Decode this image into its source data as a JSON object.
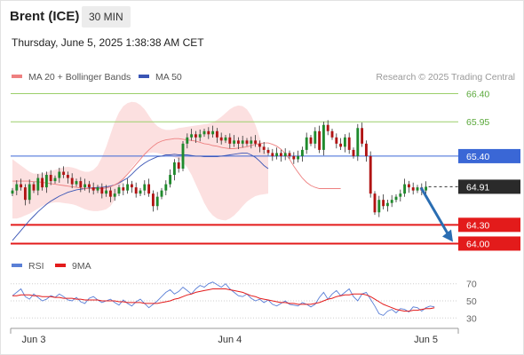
{
  "header": {
    "instrument": "Brent (ICE)",
    "interval": "30 MIN",
    "datetime": "Thursday, June 5, 2025 1:38:38 AM CET",
    "copyright": "Research © 2025 Trading Central"
  },
  "colors": {
    "bullish": "#1f8a2c",
    "bearish": "#b11414",
    "bollinger": "#f5a6a6",
    "ma20": "#ee8080",
    "ma50": "#3a55b5",
    "support": "#e31b1b",
    "resistance_minor": "#9bcf6a",
    "resistance_major": "#3a67d6",
    "rsi": "#5a7fd6",
    "rsi_ma": "#e31b1b",
    "current_price": "#2a2a2a",
    "arrow": "#2a6db2"
  },
  "chart_data": [
    {
      "type": "candlestick",
      "legend": [
        {
          "name": "MA 20 + Bollinger Bands",
          "color": "#ee8080"
        },
        {
          "name": "MA 50",
          "color": "#3a55b5"
        }
      ],
      "x_ticks": [
        {
          "label": "Jun 3",
          "index": 5
        },
        {
          "label": "Jun 4",
          "index": 51
        },
        {
          "label": "Jun 5",
          "index": 97
        }
      ],
      "ylim": [
        63.85,
        66.55
      ],
      "levels": [
        {
          "value": 66.4,
          "label": "66.40",
          "kind": "resistance_minor"
        },
        {
          "value": 65.95,
          "label": "65.95",
          "kind": "resistance_minor"
        },
        {
          "value": 65.4,
          "label": "65.40",
          "kind": "resistance_major"
        },
        {
          "value": 64.3,
          "label": "64.30",
          "kind": "support"
        },
        {
          "value": 64.0,
          "label": "64.00",
          "kind": "support"
        }
      ],
      "current_price": {
        "value": 64.91,
        "label": "64.91"
      },
      "forecast_arrow": {
        "from": 64.91,
        "to": 64.0
      },
      "closes": [
        64.85,
        64.95,
        64.9,
        64.7,
        64.95,
        64.85,
        65.05,
        64.9,
        65.1,
        65.0,
        65.05,
        65.15,
        65.1,
        65.05,
        64.95,
        65.0,
        64.9,
        64.95,
        64.9,
        64.85,
        64.9,
        64.8,
        64.85,
        64.75,
        64.8,
        64.9,
        64.85,
        64.95,
        64.9,
        64.8,
        64.85,
        64.95,
        64.8,
        64.6,
        64.75,
        64.85,
        64.95,
        65.1,
        65.3,
        65.2,
        65.6,
        65.7,
        65.75,
        65.7,
        65.75,
        65.8,
        65.75,
        65.8,
        65.7,
        65.65,
        65.7,
        65.6,
        65.65,
        65.6,
        65.65,
        65.6,
        65.65,
        65.6,
        65.55,
        65.5,
        65.45,
        65.4,
        65.45,
        65.4,
        65.45,
        65.4,
        65.35,
        65.4,
        65.5,
        65.7,
        65.6,
        65.8,
        65.5,
        65.9,
        65.8,
        65.7,
        65.6,
        65.55,
        65.7,
        65.5,
        65.4,
        65.85,
        65.6,
        65.4,
        64.8,
        64.5,
        64.7,
        64.6,
        64.65,
        64.7,
        64.75,
        64.8,
        64.95,
        64.9,
        64.85,
        64.9,
        64.85,
        64.91
      ],
      "ma20": [
        65.0,
        65.0,
        65.0,
        65.0,
        65.0,
        64.99,
        64.99,
        64.98,
        64.97,
        64.96,
        64.95,
        64.94,
        64.93,
        64.92,
        64.91,
        64.9,
        64.89,
        64.88,
        64.88,
        64.88,
        64.88,
        64.88,
        64.89,
        64.91,
        64.94,
        64.98,
        65.04,
        65.11,
        65.19,
        65.27,
        65.35,
        65.43,
        65.5,
        65.56,
        65.61,
        65.64,
        65.66,
        65.67,
        65.68,
        65.68,
        65.67,
        65.66,
        65.65,
        65.64,
        65.62,
        65.6,
        65.59,
        65.57,
        65.56,
        65.54,
        65.53,
        65.52,
        65.52,
        65.53,
        65.54,
        65.55,
        65.57,
        65.59,
        65.6,
        65.61,
        65.61,
        65.59,
        65.56,
        65.51,
        65.44,
        65.35,
        65.24,
        65.14,
        65.05,
        64.98,
        64.93,
        64.9,
        64.88,
        64.88,
        64.88,
        64.88,
        64.88,
        64.88
      ],
      "bb_upper": [
        65.35,
        65.3,
        65.25,
        65.2,
        65.15,
        65.12,
        65.12,
        65.12,
        65.14,
        65.16,
        65.18,
        65.2,
        65.22,
        65.23,
        65.22,
        65.2,
        65.17,
        65.15,
        65.15,
        65.18,
        65.25,
        65.38,
        65.55,
        65.75,
        65.95,
        66.1,
        66.2,
        66.25,
        66.27,
        66.26,
        66.22,
        66.15,
        66.05,
        65.95,
        65.88,
        65.84,
        65.82,
        65.82,
        65.83,
        65.85,
        65.86,
        65.87,
        65.88,
        65.89,
        65.9,
        65.91,
        65.92,
        65.94,
        65.98,
        66.03,
        66.09,
        66.15,
        66.19,
        66.21,
        66.2,
        66.15,
        66.05,
        65.9,
        65.7,
        65.5,
        65.4
      ],
      "bb_lower": [
        64.4,
        64.4,
        64.42,
        64.45,
        64.48,
        64.52,
        64.56,
        64.6,
        64.63,
        64.65,
        64.66,
        64.66,
        64.65,
        64.64,
        64.63,
        64.61,
        64.58,
        64.55,
        64.53,
        64.52,
        64.52,
        64.53,
        64.55,
        64.6,
        64.7,
        64.85,
        65.0,
        65.12,
        65.22,
        65.3,
        65.37,
        65.42,
        65.45,
        65.46,
        65.45,
        65.43,
        65.41,
        65.4,
        65.38,
        65.35,
        65.3,
        65.22,
        65.1,
        64.95,
        64.8,
        64.65,
        64.53,
        64.45,
        64.4,
        64.38,
        64.37,
        64.4,
        64.45,
        64.52,
        64.6,
        64.67,
        64.72,
        64.76,
        64.78,
        64.79,
        64.8
      ],
      "ma50": [
        64.05,
        64.13,
        64.21,
        64.29,
        64.37,
        64.44,
        64.51,
        64.57,
        64.63,
        64.68,
        64.72,
        64.76,
        64.79,
        64.82,
        64.84,
        64.86,
        64.87,
        64.88,
        64.89,
        64.89,
        64.9,
        64.9,
        64.91,
        64.92,
        64.94,
        64.97,
        65.01,
        65.05,
        65.11,
        65.18,
        65.24,
        65.29,
        65.33,
        65.36,
        65.39,
        65.4,
        65.42,
        65.42,
        65.43,
        65.42,
        65.42,
        65.42,
        65.41,
        65.4,
        65.4,
        65.39,
        65.39,
        65.39,
        65.39,
        65.4,
        65.41,
        65.42,
        65.43,
        65.44,
        65.45,
        65.45,
        65.42,
        65.38,
        65.32,
        65.25,
        65.2
      ]
    },
    {
      "type": "line",
      "legend": [
        {
          "name": "RSI",
          "color": "#5a7fd6"
        },
        {
          "name": "9MA",
          "color": "#e31b1b"
        }
      ],
      "y_ticks": [
        70,
        50,
        30
      ],
      "ylim": [
        22,
        78
      ],
      "rsi": [
        56,
        60,
        64,
        55,
        52,
        58,
        54,
        50,
        52,
        56,
        54,
        58,
        55,
        51,
        50,
        54,
        49,
        47,
        53,
        55,
        51,
        48,
        50,
        52,
        48,
        45,
        51,
        47,
        44,
        49,
        52,
        47,
        42,
        46,
        50,
        55,
        60,
        63,
        58,
        61,
        66,
        62,
        58,
        64,
        68,
        66,
        70,
        72,
        69,
        66,
        70,
        64,
        60,
        56,
        55,
        58,
        53,
        50,
        52,
        48,
        51,
        46,
        44,
        47,
        50,
        46,
        45,
        44,
        48,
        46,
        43,
        46,
        54,
        60,
        52,
        58,
        62,
        56,
        60,
        64,
        55,
        50,
        58,
        60,
        52,
        44,
        35,
        33,
        38,
        40,
        36,
        41,
        40,
        37,
        43,
        42,
        38,
        42,
        44,
        43
      ],
      "rsi_ma": [
        56,
        56,
        57,
        57,
        57,
        56,
        56,
        55,
        55,
        55,
        54,
        54,
        53,
        53,
        53,
        52,
        52,
        51,
        51,
        51,
        51,
        50,
        50,
        50,
        50,
        49,
        49,
        48,
        48,
        48,
        48,
        47,
        47,
        47,
        47,
        48,
        49,
        50,
        52,
        53,
        55,
        57,
        58,
        60,
        61,
        62,
        63,
        64,
        64,
        64,
        64,
        63,
        62,
        61,
        60,
        58,
        56,
        55,
        53,
        52,
        51,
        50,
        49,
        48,
        48,
        47,
        47,
        46,
        46,
        46,
        46,
        47,
        48,
        50,
        52,
        53,
        55,
        56,
        57,
        57,
        58,
        58,
        58,
        57,
        55,
        52,
        49,
        46,
        44,
        42,
        40,
        39,
        38,
        38,
        39,
        39,
        40,
        41,
        41,
        42
      ]
    }
  ]
}
